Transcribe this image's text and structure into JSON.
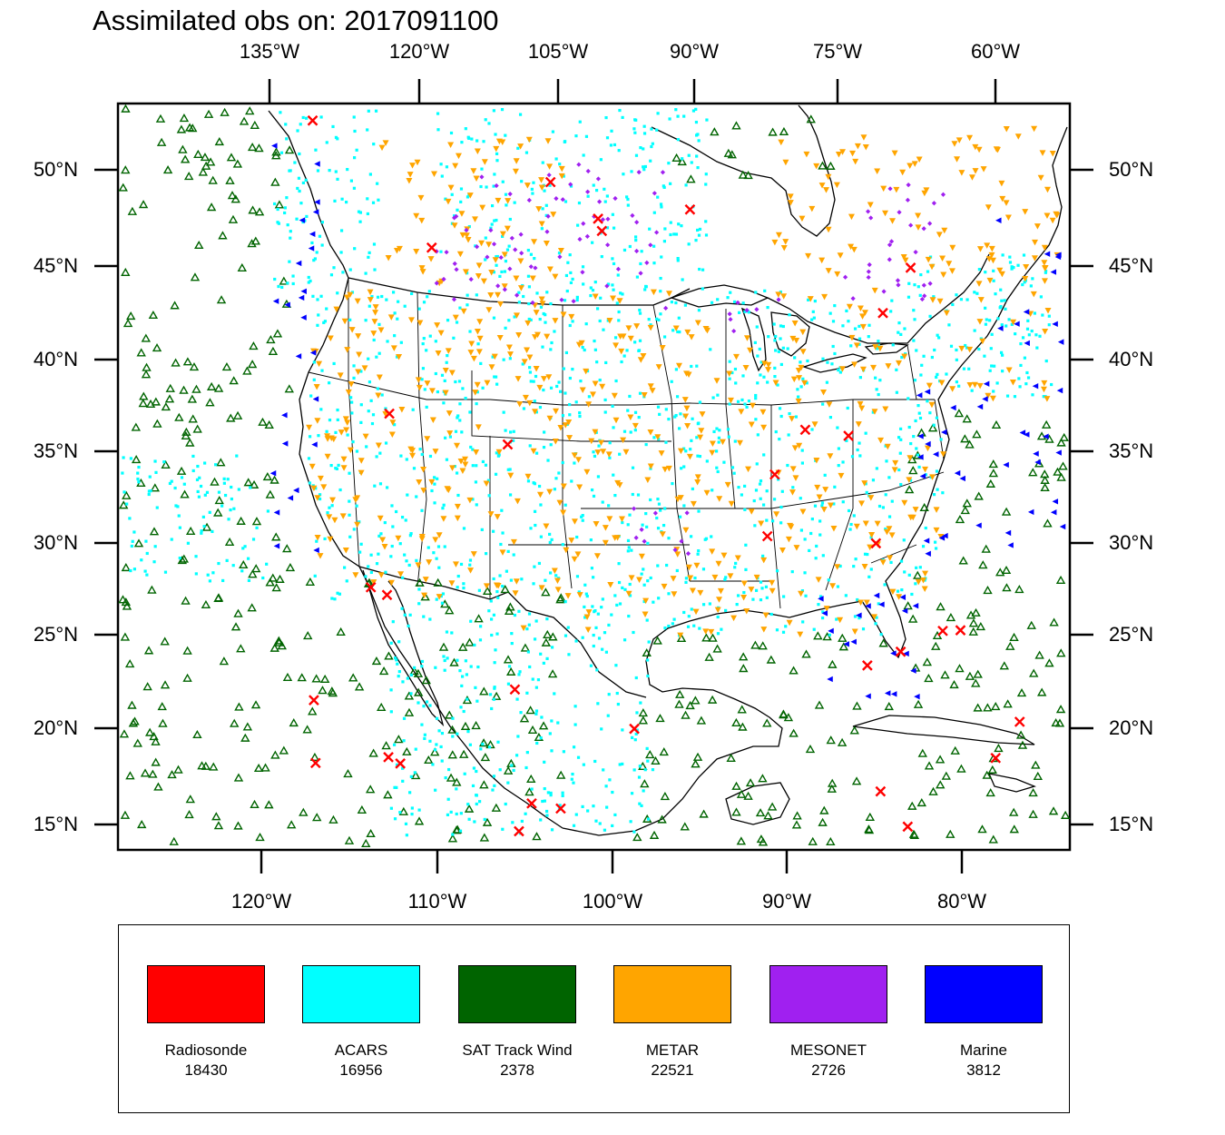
{
  "title": "Assimilated obs on: 2017091100",
  "axes": {
    "top_ticks": [
      "135°W",
      "120°W",
      "105°W",
      "90°W",
      "75°W",
      "60°W"
    ],
    "bottom_ticks": [
      "120°W",
      "110°W",
      "100°W",
      "90°W",
      "80°W"
    ],
    "left_ticks": [
      "50°N",
      "45°N",
      "40°N",
      "35°N",
      "30°N",
      "25°N",
      "20°N",
      "15°N"
    ],
    "right_ticks": [
      "50°N",
      "45°N",
      "40°N",
      "35°N",
      "30°N",
      "25°N",
      "20°N",
      "15°N"
    ]
  },
  "legend": [
    {
      "name": "Radiosonde",
      "count": "18430",
      "color": "#ff0000"
    },
    {
      "name": "ACARS",
      "count": "16956",
      "color": "#00ffff"
    },
    {
      "name": "SAT Track Wind",
      "count": "2378",
      "color": "#006400"
    },
    {
      "name": "METAR",
      "count": "22521",
      "color": "#ffa500"
    },
    {
      "name": "MESONET",
      "count": "2726",
      "color": "#a020f0"
    },
    {
      "name": "Marine",
      "count": "3812",
      "color": "#0000ff"
    }
  ],
  "map": {
    "background_color": "#ffffff",
    "coastline_color": "#000000",
    "symbols": {
      "Radiosonde": "x-mark",
      "ACARS": "dot",
      "SAT Track Wind": "open-triangle",
      "METAR": "down-triangle",
      "MESONET": "diamond",
      "Marine": "left-triangle"
    }
  }
}
